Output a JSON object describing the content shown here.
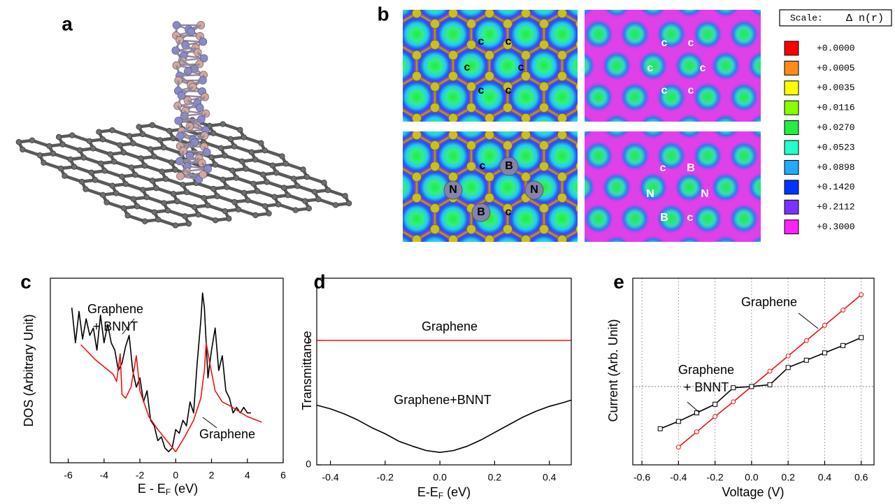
{
  "panel_a": {
    "label": "a"
  },
  "panel_b": {
    "label": "b",
    "maps": [
      {
        "atom_labels": [
          "c",
          "c",
          "c",
          "c",
          "c",
          "c"
        ]
      },
      {
        "atom_labels": [
          "c",
          "c",
          "c",
          "c",
          "c",
          "c"
        ]
      },
      {
        "atom_labels": [
          "c",
          "B",
          "N",
          "N",
          "B",
          "c"
        ]
      },
      {
        "atom_labels": [
          "c",
          "B",
          "N",
          "N",
          "B",
          "c"
        ]
      }
    ],
    "scale": {
      "title": "Scale:",
      "quantity": "Δ n(r)",
      "entries": [
        {
          "label": "+0.0000",
          "color": "#ff0000"
        },
        {
          "label": "+0.0005",
          "color": "#ff8c1a"
        },
        {
          "label": "+0.0035",
          "color": "#ffff00"
        },
        {
          "label": "+0.0116",
          "color": "#88ff00"
        },
        {
          "label": "+0.0270",
          "color": "#22ee44"
        },
        {
          "label": "+0.0523",
          "color": "#22ffcc"
        },
        {
          "label": "+0.0898",
          "color": "#22aaff"
        },
        {
          "label": "+0.1420",
          "color": "#0033ff"
        },
        {
          "label": "+0.2112",
          "color": "#7a33ff"
        },
        {
          "label": "+0.3000",
          "color": "#ff22ff"
        }
      ]
    }
  },
  "chart_data": [
    {
      "type": "line",
      "panel_label": "c",
      "xlabel": [
        "E - E",
        "F",
        " (eV)"
      ],
      "ylabel": "DOS (Arbitrary Unit)",
      "xlim": [
        -7,
        6
      ],
      "ylim": [
        0,
        10
      ],
      "xticks": [
        -6,
        -4,
        -2,
        0,
        2,
        4,
        6
      ],
      "series": [
        {
          "name": [
            "Graphene",
            "+ BNNT"
          ],
          "color": "#000000",
          "x": [
            -5.8,
            -5.6,
            -5.4,
            -5.2,
            -5.0,
            -4.8,
            -4.6,
            -4.4,
            -4.2,
            -4.0,
            -3.8,
            -3.6,
            -3.4,
            -3.2,
            -3.0,
            -2.8,
            -2.6,
            -2.4,
            -2.2,
            -2.0,
            -1.8,
            -1.6,
            -1.4,
            -1.2,
            -1.0,
            -0.8,
            -0.6,
            -0.4,
            -0.2,
            0.0,
            0.2,
            0.4,
            0.6,
            0.8,
            1.0,
            1.2,
            1.4,
            1.5,
            1.6,
            1.8,
            2.0,
            2.2,
            2.4,
            2.6,
            2.8,
            3.0,
            3.2,
            3.4,
            3.6,
            3.8,
            4.0,
            4.2
          ],
          "values": [
            8.4,
            6.5,
            8.2,
            6.7,
            7.8,
            6.9,
            7.3,
            6.1,
            8.0,
            6.5,
            7.5,
            6.5,
            6.1,
            5.0,
            5.4,
            6.3,
            6.9,
            5.0,
            4.1,
            4.6,
            3.3,
            3.9,
            2.3,
            2.0,
            1.2,
            1.4,
            0.8,
            0.6,
            0.8,
            1.8,
            1.6,
            2.3,
            2.0,
            3.3,
            2.7,
            5.4,
            7.7,
            9.2,
            8.4,
            4.6,
            6.1,
            7.3,
            5.0,
            5.8,
            3.9,
            3.5,
            2.7,
            3.0,
            2.7,
            3.0,
            2.7,
            2.7
          ]
        },
        {
          "name": [
            "Graphene"
          ],
          "color": "#ee1111",
          "x": [
            -5.3,
            -5.0,
            -4.5,
            -4.0,
            -3.5,
            -3.3,
            -3.1,
            -3.0,
            -2.8,
            -2.5,
            -2.2,
            -2.0,
            -1.5,
            -1.0,
            -0.5,
            0.0,
            0.5,
            1.0,
            1.4,
            1.6,
            1.7,
            1.9,
            2.2,
            2.6,
            3.0,
            3.5,
            4.0,
            4.8
          ],
          "values": [
            6.4,
            6.1,
            5.6,
            5.2,
            4.8,
            4.4,
            5.9,
            3.7,
            3.5,
            4.1,
            5.8,
            3.9,
            2.5,
            1.8,
            1.2,
            0.6,
            1.4,
            2.3,
            3.5,
            5.0,
            6.5,
            5.4,
            3.9,
            3.3,
            3.1,
            2.8,
            2.5,
            2.2
          ]
        }
      ]
    },
    {
      "type": "line",
      "panel_label": "d",
      "xlabel": [
        "E-E",
        "F",
        " (eV)"
      ],
      "ylabel": "Transmittance",
      "xlim": [
        -0.45,
        0.48
      ],
      "ylim": [
        0,
        1.5
      ],
      "xticks": [
        -0.4,
        -0.2,
        {
          "value": 0,
          "label": "0.0"
        },
        0.2,
        0.4
      ],
      "yticks": [
        0,
        1
      ],
      "series": [
        {
          "name": [
            "Graphene"
          ],
          "color": "#ee1111",
          "x": [
            -0.45,
            0.48
          ],
          "values": [
            1,
            1
          ]
        },
        {
          "name": [
            "Graphene+BNNT"
          ],
          "color": "#000000",
          "x": [
            -0.45,
            -0.4,
            -0.35,
            -0.3,
            -0.25,
            -0.2,
            -0.15,
            -0.1,
            -0.05,
            0,
            0.05,
            0.1,
            0.15,
            0.2,
            0.25,
            0.3,
            0.35,
            0.4,
            0.45,
            0.48
          ],
          "values": [
            0.48,
            0.45,
            0.41,
            0.36,
            0.3,
            0.25,
            0.19,
            0.15,
            0.115,
            0.1,
            0.115,
            0.15,
            0.2,
            0.26,
            0.32,
            0.38,
            0.43,
            0.47,
            0.5,
            0.52
          ]
        }
      ]
    },
    {
      "type": "line",
      "panel_label": "e",
      "xlabel": [
        "Voltage (V)"
      ],
      "ylabel": "Current (Arb. Unit)",
      "xlim": [
        -0.65,
        0.67
      ],
      "ylim": [
        -1.28,
        1.77
      ],
      "xticks": [
        -0.6,
        -0.4,
        -0.2,
        {
          "value": 0,
          "label": "0.0"
        },
        0.2,
        0.4,
        0.6
      ],
      "grid": true,
      "series": [
        {
          "name": [
            "Graphene"
          ],
          "color": "#ee1111",
          "marker": "circle",
          "x": [
            -0.4,
            -0.3,
            -0.2,
            -0.1,
            0,
            0.1,
            0.2,
            0.3,
            0.4,
            0.5,
            0.6
          ],
          "values": [
            -0.99,
            -0.74,
            -0.49,
            -0.25,
            0,
            0.25,
            0.5,
            0.75,
            1.0,
            1.25,
            1.5
          ]
        },
        {
          "name": [
            "Graphene",
            "+ BNNT"
          ],
          "color": "#000000",
          "marker": "square",
          "x": [
            -0.5,
            -0.4,
            -0.3,
            -0.2,
            -0.1,
            0,
            0.1,
            0.2,
            0.3,
            0.4,
            0.5,
            0.6
          ],
          "values": [
            -0.69,
            -0.57,
            -0.43,
            -0.29,
            -0.02,
            0,
            0.03,
            0.31,
            0.43,
            0.55,
            0.67,
            0.8
          ]
        }
      ]
    }
  ]
}
